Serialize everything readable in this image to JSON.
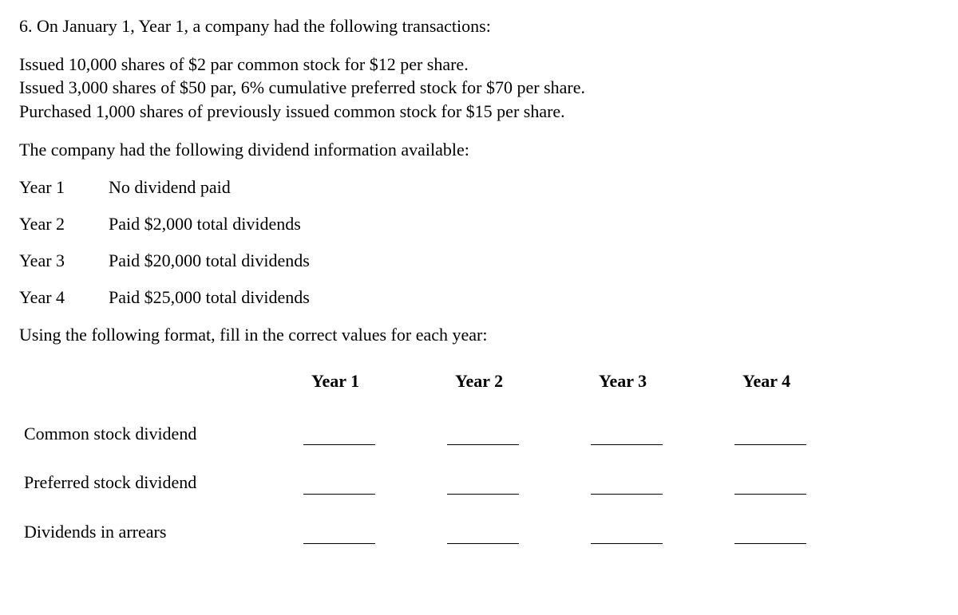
{
  "question": {
    "number": "6.",
    "intro": "On January 1, Year 1, a company had the following transactions:",
    "transactions": [
      "Issued 10,000 shares of $2 par common stock for $12 per share.",
      "Issued 3,000 shares of $50 par, 6% cumulative preferred stock for $70 per share.",
      "Purchased 1,000 shares of previously issued common stock for $15 per share."
    ],
    "dividend_intro": "The company had the following dividend information available:",
    "year_info": [
      {
        "label": "Year 1",
        "desc": "No dividend paid"
      },
      {
        "label": "Year 2",
        "desc": "Paid $2,000 total dividends"
      },
      {
        "label": "Year 3",
        "desc": "Paid $20,000 total dividends"
      },
      {
        "label": "Year 4",
        "desc": "Paid $25,000 total dividends"
      }
    ],
    "format_instruction": "Using the following format, fill in the correct values for each year:"
  },
  "table": {
    "headers": [
      "Year 1",
      "Year 2",
      "Year 3",
      "Year 4"
    ],
    "rows": [
      "Common stock dividend",
      "Preferred stock dividend",
      "Dividends in arrears"
    ]
  }
}
